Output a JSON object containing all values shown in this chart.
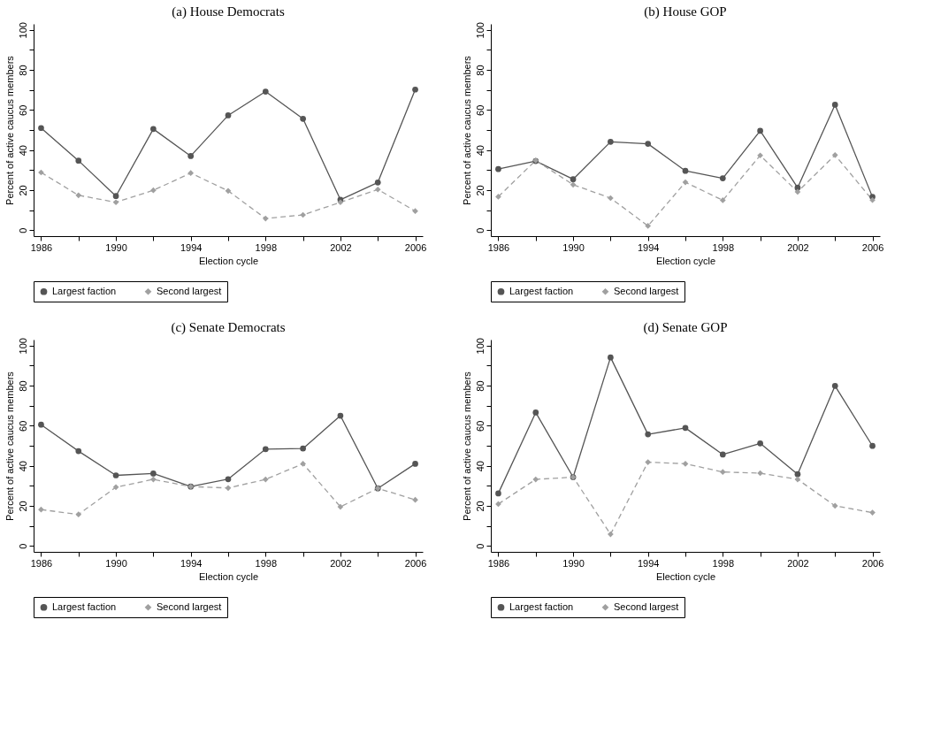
{
  "chart_data": [
    {
      "type": "line",
      "title": "(a)  House Democrats",
      "xlabel": "Election cycle",
      "ylabel": "Percent of active caucus members",
      "x": [
        1986,
        1988,
        1990,
        1992,
        1994,
        1996,
        1998,
        2000,
        2002,
        2004,
        2006
      ],
      "series": [
        {
          "name": "Largest faction",
          "color": "#555555",
          "marker": "circle",
          "line_style": "solid",
          "values": [
            51,
            34.7,
            17,
            50.5,
            37,
            57.3,
            69.2,
            55.6,
            15.2,
            23.8,
            70.2
          ]
        },
        {
          "name": "Second largest",
          "color": "#a0a0a0",
          "marker": "diamond",
          "line_style": "dashed",
          "values": [
            28.8,
            17.4,
            13.9,
            19.9,
            28.5,
            19.6,
            5.8,
            7.6,
            13.9,
            20.3,
            9.5
          ]
        }
      ],
      "xlim": [
        1985.6,
        2006.4
      ],
      "ylim": [
        -3,
        103
      ],
      "xticks": [
        1986,
        {
          "value": 1988,
          "label": null
        },
        1990,
        {
          "value": 1992,
          "label": null
        },
        1994,
        {
          "value": 1996,
          "label": null
        },
        1998,
        {
          "value": 2000,
          "label": null
        },
        2002,
        {
          "value": 2004,
          "label": null
        },
        2006
      ],
      "yticks": [
        0,
        {
          "value": 10,
          "label": null
        },
        20,
        {
          "value": 30,
          "label": null
        },
        40,
        {
          "value": 50,
          "label": null
        },
        60,
        {
          "value": 70,
          "label": null
        },
        80,
        {
          "value": 90,
          "label": null
        },
        100
      ],
      "grid": false,
      "legend": "bottom"
    },
    {
      "type": "line",
      "title": "(b)  House GOP",
      "xlabel": "Election cycle",
      "ylabel": "Percent of active caucus members",
      "x": [
        1986,
        1988,
        1990,
        1992,
        1994,
        1996,
        1998,
        2000,
        2002,
        2004,
        2006
      ],
      "series": [
        {
          "name": "Largest faction",
          "color": "#555555",
          "marker": "circle",
          "line_style": "solid",
          "values": [
            30.5,
            34.5,
            25.4,
            44.1,
            43.1,
            29.6,
            25.9,
            49.6,
            21.2,
            62.6,
            16.6
          ]
        },
        {
          "name": "Second largest",
          "color": "#a0a0a0",
          "marker": "diamond",
          "line_style": "dashed",
          "values": [
            16.7,
            34.8,
            22.7,
            16,
            2.1,
            23.9,
            14.9,
            37.3,
            19.1,
            37.5,
            15
          ]
        }
      ],
      "xlim": [
        1985.6,
        2006.4
      ],
      "ylim": [
        -3,
        103
      ],
      "xticks": [
        1986,
        {
          "value": 1988,
          "label": null
        },
        1990,
        {
          "value": 1992,
          "label": null
        },
        1994,
        {
          "value": 1996,
          "label": null
        },
        1998,
        {
          "value": 2000,
          "label": null
        },
        2002,
        {
          "value": 2004,
          "label": null
        },
        2006
      ],
      "yticks": [
        0,
        {
          "value": 10,
          "label": null
        },
        20,
        {
          "value": 30,
          "label": null
        },
        40,
        {
          "value": 50,
          "label": null
        },
        60,
        {
          "value": 70,
          "label": null
        },
        80,
        {
          "value": 90,
          "label": null
        },
        100
      ],
      "grid": false,
      "legend": "bottom"
    },
    {
      "type": "line",
      "title": "(c)  Senate Democrats",
      "xlabel": "Election cycle",
      "ylabel": "Percent of active caucus members",
      "x": [
        1986,
        1988,
        1990,
        1992,
        1994,
        1996,
        1998,
        2000,
        2002,
        2004,
        2006
      ],
      "series": [
        {
          "name": "Largest faction",
          "color": "#555555",
          "marker": "circle",
          "line_style": "solid",
          "values": [
            60.5,
            47.3,
            35.2,
            36.1,
            29.6,
            33.3,
            48.3,
            48.6,
            65,
            28.7,
            41
          ]
        },
        {
          "name": "Second largest",
          "color": "#a0a0a0",
          "marker": "diamond",
          "line_style": "dashed",
          "values": [
            18.1,
            15.7,
            29.3,
            33.2,
            29.6,
            28.9,
            33.2,
            41,
            19.5,
            28.7,
            23
          ]
        }
      ],
      "xlim": [
        1985.6,
        2006.4
      ],
      "ylim": [
        -3,
        103
      ],
      "xticks": [
        1986,
        {
          "value": 1988,
          "label": null
        },
        1990,
        {
          "value": 1992,
          "label": null
        },
        1994,
        {
          "value": 1996,
          "label": null
        },
        1998,
        {
          "value": 2000,
          "label": null
        },
        2002,
        {
          "value": 2004,
          "label": null
        },
        2006
      ],
      "yticks": [
        0,
        {
          "value": 10,
          "label": null
        },
        20,
        {
          "value": 30,
          "label": null
        },
        40,
        {
          "value": 50,
          "label": null
        },
        60,
        {
          "value": 70,
          "label": null
        },
        80,
        {
          "value": 90,
          "label": null
        },
        100
      ],
      "grid": false,
      "legend": "bottom"
    },
    {
      "type": "line",
      "title": "(d)  Senate GOP",
      "xlabel": "Election cycle",
      "ylabel": "Percent of active caucus members",
      "x": [
        1986,
        1988,
        1990,
        1992,
        1994,
        1996,
        1998,
        2000,
        2002,
        2004,
        2006
      ],
      "series": [
        {
          "name": "Largest faction",
          "color": "#555555",
          "marker": "circle",
          "line_style": "solid",
          "values": [
            26.2,
            66.6,
            34.3,
            94.1,
            55.7,
            58.9,
            45.6,
            51.2,
            35.8,
            79.9,
            49.9
          ]
        },
        {
          "name": "Second largest",
          "color": "#a0a0a0",
          "marker": "diamond",
          "line_style": "dashed",
          "values": [
            20.9,
            33.2,
            34.3,
            5.8,
            41.8,
            41,
            36.9,
            36.3,
            33.2,
            20,
            16.6
          ]
        }
      ],
      "xlim": [
        1985.6,
        2006.4
      ],
      "ylim": [
        -3,
        103
      ],
      "xticks": [
        1986,
        {
          "value": 1988,
          "label": null
        },
        1990,
        {
          "value": 1992,
          "label": null
        },
        1994,
        {
          "value": 1996,
          "label": null
        },
        1998,
        {
          "value": 2000,
          "label": null
        },
        2002,
        {
          "value": 2004,
          "label": null
        },
        2006
      ],
      "yticks": [
        0,
        {
          "value": 10,
          "label": null
        },
        20,
        {
          "value": 30,
          "label": null
        },
        40,
        {
          "value": 50,
          "label": null
        },
        60,
        {
          "value": 70,
          "label": null
        },
        80,
        {
          "value": 90,
          "label": null
        },
        100
      ],
      "grid": false,
      "legend": "bottom"
    }
  ]
}
